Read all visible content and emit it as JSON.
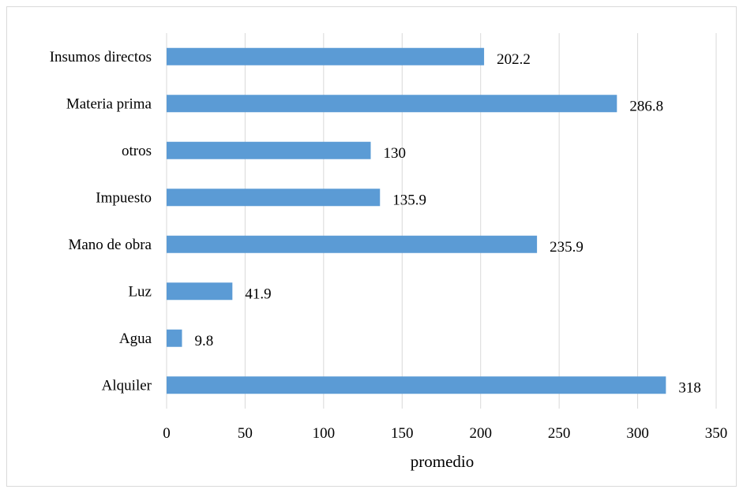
{
  "chart_data": {
    "type": "bar",
    "orientation": "horizontal",
    "categories": [
      "Insumos directos",
      "Materia prima",
      "otros",
      "Impuesto",
      "Mano de obra",
      "Luz",
      "Agua",
      "Alquiler"
    ],
    "values": [
      202.2,
      286.8,
      130,
      135.9,
      235.9,
      41.9,
      9.8,
      318
    ],
    "value_labels": [
      "202.2",
      "286.8",
      "130",
      "135.9",
      "235.9",
      "41.9",
      "9.8",
      "318"
    ],
    "xlabel": "promedio",
    "xlim": [
      0,
      350
    ],
    "xticks": [
      0,
      50,
      100,
      150,
      200,
      250,
      300,
      350
    ],
    "grid": "vertical",
    "legend": "none",
    "bar_color": "#5b9bd5",
    "grid_color": "#d9d9d9"
  }
}
